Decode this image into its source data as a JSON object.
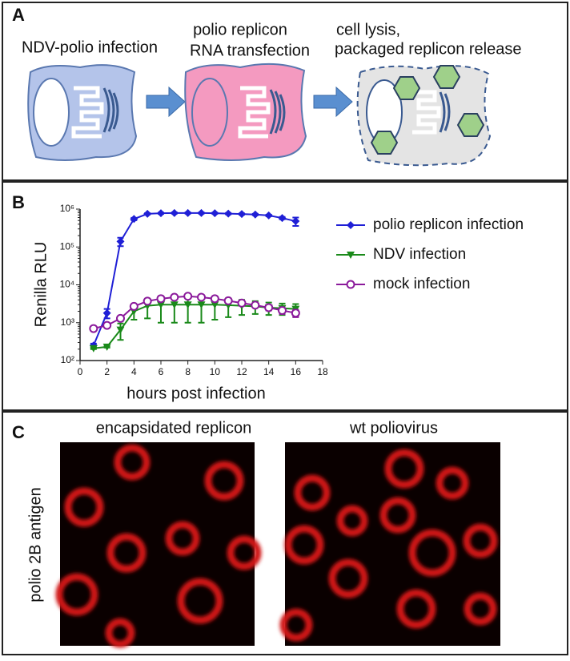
{
  "panel_a": {
    "label": "A",
    "steps": [
      {
        "lines": [
          "NDV-polio infection"
        ]
      },
      {
        "lines": [
          "polio replicon",
          "RNA transfection"
        ]
      },
      {
        "lines": [
          "cell lysis,",
          "packaged replicon release"
        ]
      }
    ]
  },
  "chart_data": {
    "type": "line",
    "panel_label": "B",
    "x_label": "hours post infection",
    "y_label": "Renilla RLU",
    "x": [
      1,
      2,
      3,
      4,
      5,
      6,
      7,
      8,
      9,
      10,
      11,
      12,
      13,
      14,
      15,
      16
    ],
    "xlim": [
      0,
      18
    ],
    "xticks": [
      0,
      2,
      4,
      6,
      8,
      10,
      12,
      14,
      16,
      18
    ],
    "ylim": [
      100,
      1000000
    ],
    "log_y": true,
    "yticks": [
      {
        "value": 100,
        "label": "10²"
      },
      {
        "value": 1000,
        "label": "10³"
      },
      {
        "value": 10000,
        "label": "10⁴"
      },
      {
        "value": 100000,
        "label": "10⁵"
      },
      {
        "value": 1000000,
        "label": "10⁶"
      }
    ],
    "series": [
      {
        "name": "polio replicon infection",
        "color": "#1f1fd6",
        "marker": "diamond",
        "values": [
          250,
          1800,
          140000,
          550000,
          750000,
          780000,
          790000,
          790000,
          790000,
          780000,
          760000,
          740000,
          720000,
          680000,
          580000,
          480000
        ],
        "errors": [
          30,
          500,
          35000,
          40000,
          30000,
          30000,
          30000,
          30000,
          30000,
          30000,
          30000,
          30000,
          30000,
          30000,
          40000,
          120000
        ]
      },
      {
        "name": "NDV infection",
        "color": "#1a8a1a",
        "marker": "triangle-down",
        "values": [
          210,
          230,
          650,
          2000,
          2800,
          3000,
          3000,
          3000,
          3000,
          3000,
          2900,
          2800,
          2700,
          2500,
          2400,
          2300
        ],
        "errors": [
          10,
          10,
          300,
          800,
          1500,
          2000,
          2000,
          2000,
          2000,
          1800,
          1500,
          1200,
          1000,
          900,
          800,
          800
        ]
      },
      {
        "name": "mock infection",
        "color": "#8b1a9b",
        "marker": "circle-open",
        "values": [
          700,
          850,
          1300,
          2700,
          3700,
          4300,
          4700,
          5000,
          4700,
          4300,
          3800,
          3300,
          2900,
          2500,
          2100,
          1800
        ],
        "errors": [
          60,
          80,
          200,
          300,
          400,
          300,
          300,
          300,
          300,
          300,
          300,
          300,
          300,
          400,
          400,
          400
        ]
      }
    ],
    "legend": "right"
  },
  "panel_c": {
    "label": "C",
    "y_label": "polio 2B antigen",
    "image_titles": [
      "encapsidated replicon",
      "wt poliovirus"
    ]
  }
}
